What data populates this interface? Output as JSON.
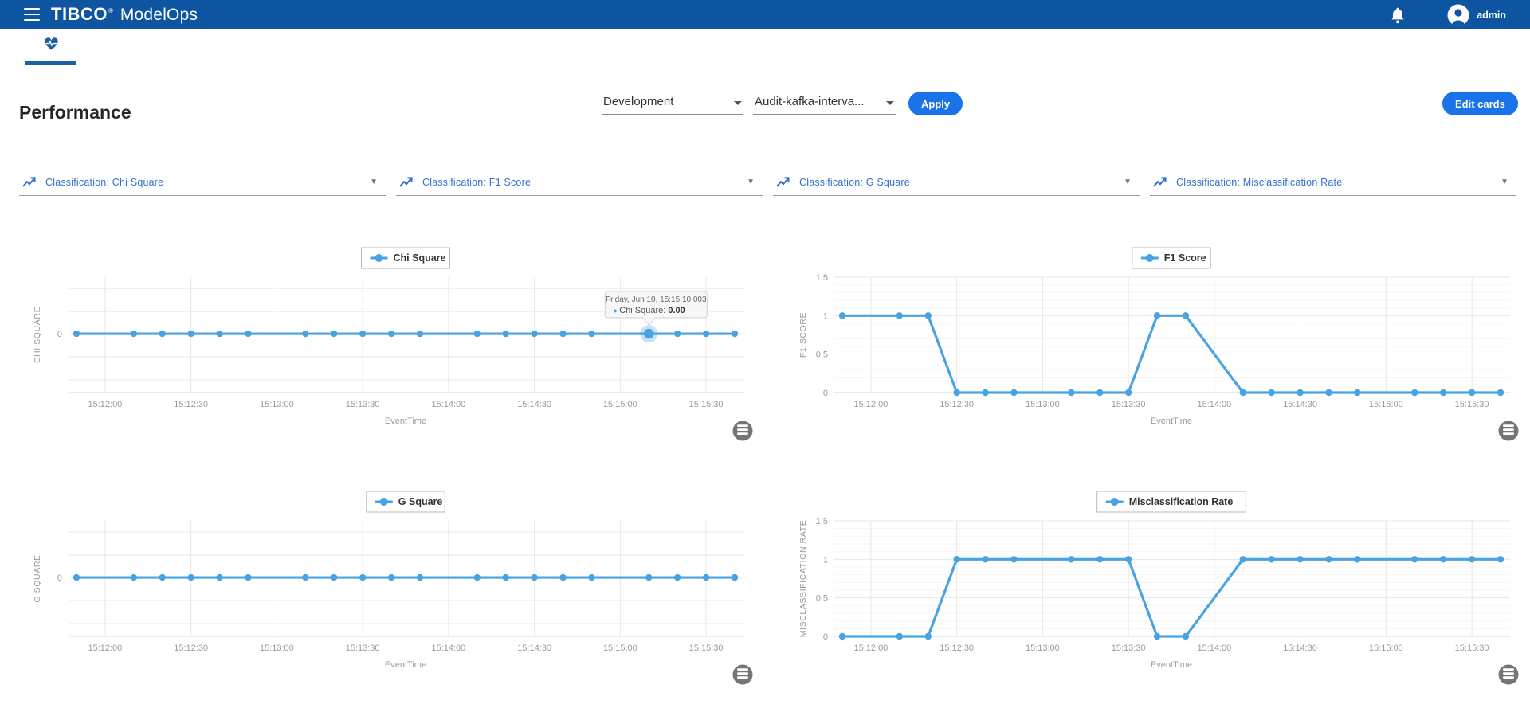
{
  "header": {
    "brand": "TIBCO",
    "brand_reg": "®",
    "product": "ModelOps",
    "user": "admin"
  },
  "toolbar": {
    "title": "Performance",
    "environment": "Development",
    "job": "Audit-kafka-interva...",
    "apply_label": "Apply",
    "edit_cards_label": "Edit cards"
  },
  "selectors": [
    {
      "label": "Classification: Chi Square"
    },
    {
      "label": "Classification: F1 Score"
    },
    {
      "label": "Classification: G Square"
    },
    {
      "label": "Classification: Misclassification Rate"
    }
  ],
  "colors": {
    "topbar": "#0d55a0",
    "accent": "#1a73e8",
    "link": "#3471c7",
    "series": "#49a3e1",
    "grid": "#e7e7e7",
    "grid_minor": "#f4f4f4",
    "axis_line": "#ccd6eb",
    "tick_text": "#9b9b9b",
    "axis_title": "#999999",
    "legend_text": "#333333",
    "legend_border": "#b9b9b9",
    "tooltip_bg": "#f7f7f7",
    "tooltip_border": "#d2d2d2",
    "tooltip_text": "#666666",
    "tooltip_value": "#333333",
    "menu_btn": "#757575"
  },
  "chart_data": [
    {
      "type": "line",
      "legend": "Chi Square",
      "ylabel": "CHI SQUARE",
      "xlabel": "EventTime",
      "x_tick_labels": [
        "15:12:00",
        "15:12:30",
        "15:13:00",
        "15:13:30",
        "15:14:00",
        "15:14:30",
        "15:15:00",
        "15:15:30"
      ],
      "x": [
        "15:11:50",
        "15:12:10",
        "15:12:20",
        "15:12:30",
        "15:12:40",
        "15:12:50",
        "15:13:10",
        "15:13:20",
        "15:13:30",
        "15:13:40",
        "15:13:50",
        "15:14:10",
        "15:14:20",
        "15:14:30",
        "15:14:40",
        "15:14:50",
        "15:15:10",
        "15:15:20",
        "15:15:30",
        "15:15:40"
      ],
      "values": [
        0,
        0,
        0,
        0,
        0,
        0,
        0,
        0,
        0,
        0,
        0,
        0,
        0,
        0,
        0,
        0,
        0,
        0,
        0,
        0
      ],
      "y_axis": {
        "mode": "zero-only",
        "ticks": [
          {
            "v": 0,
            "label": "0"
          }
        ]
      },
      "tooltip": {
        "date": "Friday, Jun 10, 15:15:10.003",
        "label": "Chi Square",
        "value": "0.00",
        "index": 16
      }
    },
    {
      "type": "line",
      "legend": "F1 Score",
      "ylabel": "F1 SCORE",
      "xlabel": "EventTime",
      "x_tick_labels": [
        "15:12:00",
        "15:12:30",
        "15:13:00",
        "15:13:30",
        "15:14:00",
        "15:14:30",
        "15:15:00",
        "15:15:30"
      ],
      "x": [
        "15:11:50",
        "15:12:10",
        "15:12:20",
        "15:12:30",
        "15:12:40",
        "15:12:50",
        "15:13:10",
        "15:13:20",
        "15:13:30",
        "15:13:40",
        "15:13:50",
        "15:14:10",
        "15:14:20",
        "15:14:30",
        "15:14:40",
        "15:14:50",
        "15:15:10",
        "15:15:20",
        "15:15:30",
        "15:15:40"
      ],
      "values": [
        1,
        1,
        1,
        0,
        0,
        0,
        0,
        0,
        0,
        1,
        1,
        0,
        0,
        0,
        0,
        0,
        0,
        0,
        0,
        0
      ],
      "y_axis": {
        "mode": "numeric",
        "max": 1.5,
        "minor_step": 0.1,
        "ticks": [
          {
            "v": 0,
            "label": "0"
          },
          {
            "v": 0.5,
            "label": "0.5"
          },
          {
            "v": 1,
            "label": "1"
          },
          {
            "v": 1.5,
            "label": "1.5"
          }
        ]
      }
    },
    {
      "type": "line",
      "legend": "G Square",
      "ylabel": "G SQUARE",
      "xlabel": "EventTime",
      "x_tick_labels": [
        "15:12:00",
        "15:12:30",
        "15:13:00",
        "15:13:30",
        "15:14:00",
        "15:14:30",
        "15:15:00",
        "15:15:30"
      ],
      "x": [
        "15:11:50",
        "15:12:10",
        "15:12:20",
        "15:12:30",
        "15:12:40",
        "15:12:50",
        "15:13:10",
        "15:13:20",
        "15:13:30",
        "15:13:40",
        "15:13:50",
        "15:14:10",
        "15:14:20",
        "15:14:30",
        "15:14:40",
        "15:14:50",
        "15:15:10",
        "15:15:20",
        "15:15:30",
        "15:15:40"
      ],
      "values": [
        0,
        0,
        0,
        0,
        0,
        0,
        0,
        0,
        0,
        0,
        0,
        0,
        0,
        0,
        0,
        0,
        0,
        0,
        0,
        0
      ],
      "y_axis": {
        "mode": "zero-only",
        "ticks": [
          {
            "v": 0,
            "label": "0"
          }
        ]
      }
    },
    {
      "type": "line",
      "legend": "Misclassification Rate",
      "ylabel": "MISCLASSIFICATION RATE",
      "xlabel": "EventTime",
      "x_tick_labels": [
        "15:12:00",
        "15:12:30",
        "15:13:00",
        "15:13:30",
        "15:14:00",
        "15:14:30",
        "15:15:00",
        "15:15:30"
      ],
      "x": [
        "15:11:50",
        "15:12:10",
        "15:12:20",
        "15:12:30",
        "15:12:40",
        "15:12:50",
        "15:13:10",
        "15:13:20",
        "15:13:30",
        "15:13:40",
        "15:13:50",
        "15:14:10",
        "15:14:20",
        "15:14:30",
        "15:14:40",
        "15:14:50",
        "15:15:10",
        "15:15:20",
        "15:15:30",
        "15:15:40"
      ],
      "values": [
        0,
        0,
        0,
        1,
        1,
        1,
        1,
        1,
        1,
        0,
        0,
        1,
        1,
        1,
        1,
        1,
        1,
        1,
        1,
        1
      ],
      "y_axis": {
        "mode": "numeric",
        "max": 1.5,
        "minor_step": 0.1,
        "ticks": [
          {
            "v": 0,
            "label": "0"
          },
          {
            "v": 0.5,
            "label": "0.5"
          },
          {
            "v": 1,
            "label": "1"
          },
          {
            "v": 1.5,
            "label": "1.5"
          }
        ]
      }
    }
  ]
}
